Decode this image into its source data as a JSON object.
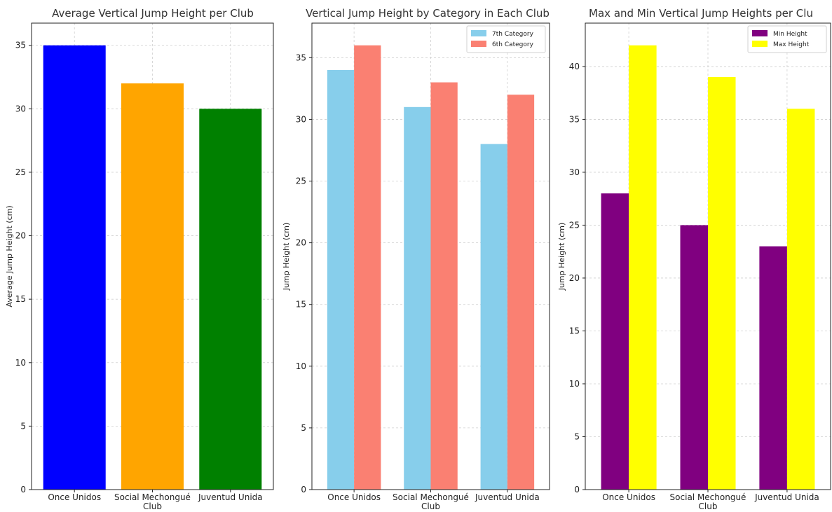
{
  "chart_data": [
    {
      "type": "bar",
      "title": "Average Vertical Jump Height per Club",
      "xlabel": "",
      "ylabel": "Average Jump Height (cm)",
      "categories": [
        "Once Unidos",
        "Social Mechongué\nClub",
        "Juventud Unida"
      ],
      "values": [
        35,
        32,
        30
      ],
      "colors": [
        "#0000ff",
        "#ffa500",
        "#008000"
      ],
      "ylim": [
        0,
        36.75
      ],
      "yticks": [
        0,
        5,
        10,
        15,
        20,
        25,
        30,
        35
      ],
      "grid": true,
      "legend": null
    },
    {
      "type": "bar",
      "title": "Vertical Jump Height by Category in Each Club",
      "xlabel": "",
      "ylabel": "Jump Height (cm)",
      "categories": [
        "Once Unidos",
        "Social Mechongué\nClub",
        "Juventud Unida"
      ],
      "series": [
        {
          "name": "7th Category",
          "values": [
            34,
            31,
            28
          ],
          "color": "#87ceeb"
        },
        {
          "name": "6th Category",
          "values": [
            36,
            33,
            32
          ],
          "color": "#fa8072"
        }
      ],
      "ylim": [
        0,
        37.8
      ],
      "yticks": [
        0,
        5,
        10,
        15,
        20,
        25,
        30,
        35
      ],
      "grid": true,
      "legend": "top-right"
    },
    {
      "type": "bar",
      "title": "Max and Min Vertical Jump Heights per Clu",
      "xlabel": "",
      "ylabel": "Jump Height (cm)",
      "categories": [
        "Once Unidos",
        "Social Mechongué\nClub",
        "Juventud Unida"
      ],
      "series": [
        {
          "name": "Min Height",
          "values": [
            28,
            25,
            23
          ],
          "color": "#800080"
        },
        {
          "name": "Max Height",
          "values": [
            42,
            39,
            36
          ],
          "color": "#ffff00"
        }
      ],
      "ylim": [
        0,
        44.1
      ],
      "yticks": [
        0,
        5,
        10,
        15,
        20,
        25,
        30,
        35,
        40
      ],
      "grid": true,
      "legend": "top-right"
    }
  ]
}
